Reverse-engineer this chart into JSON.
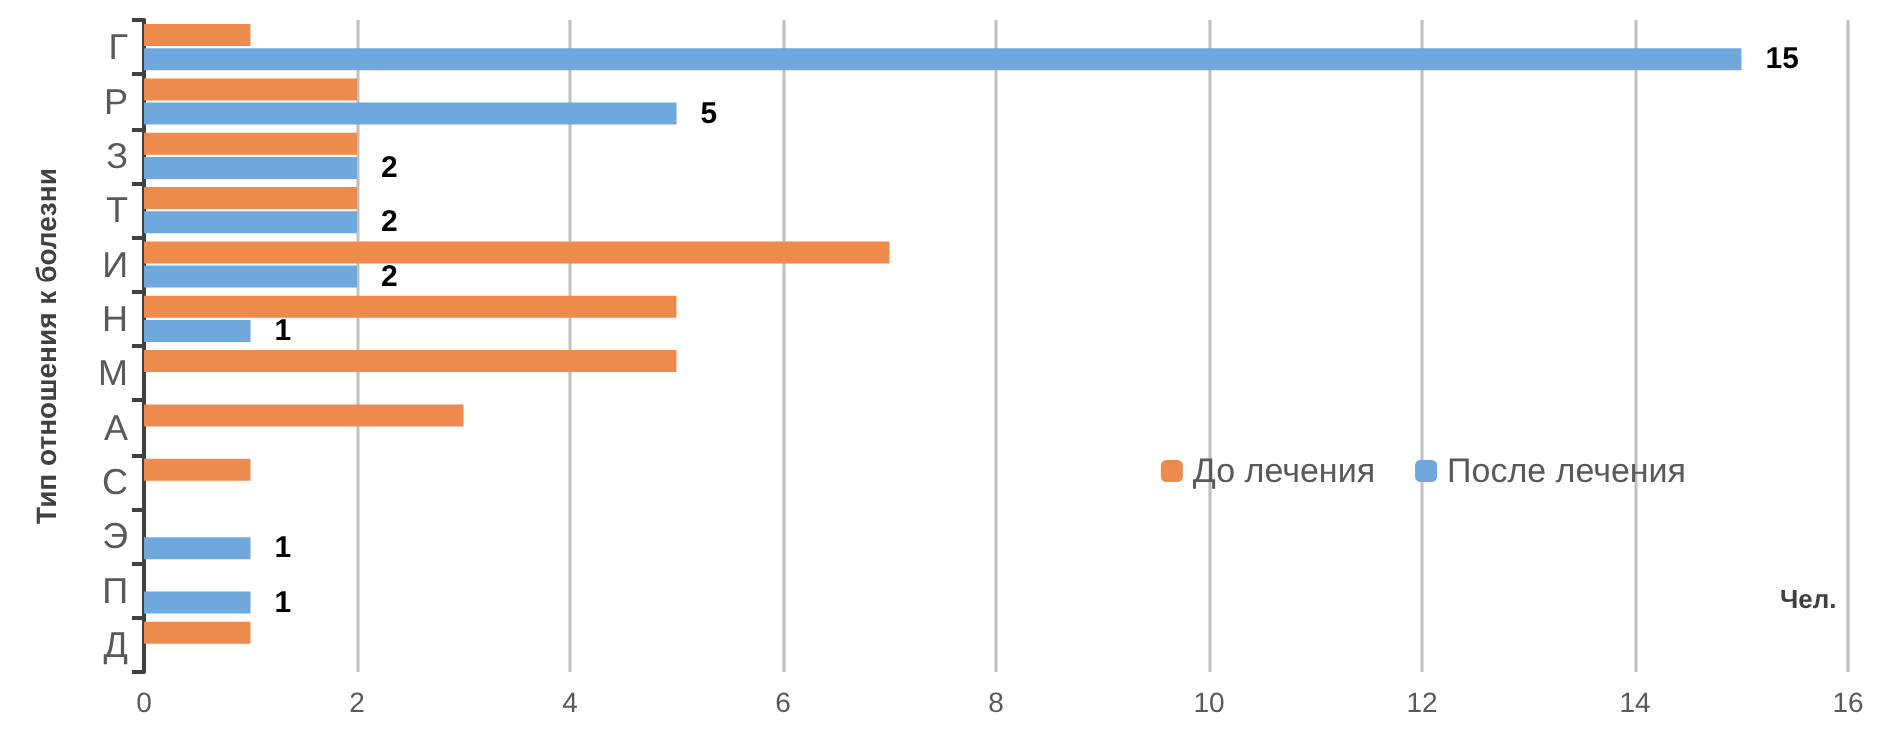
{
  "chart_data": {
    "type": "bar",
    "orientation": "horizontal",
    "xlabel": "Чел.",
    "ylabel": "Тип отношения к болезни",
    "categories": [
      "Г",
      "Р",
      "З",
      "Т",
      "И",
      "Н",
      "М",
      "А",
      "С",
      "Э",
      "П",
      "Д"
    ],
    "series": [
      {
        "name": "До лечения",
        "color": "#ed8b4c",
        "values": [
          1,
          2,
          2,
          2,
          7,
          5,
          5,
          3,
          1,
          null,
          null,
          1
        ]
      },
      {
        "name": "После лечения",
        "color": "#6fa8dc",
        "values": [
          15,
          5,
          2,
          2,
          2,
          1,
          null,
          null,
          null,
          1,
          1,
          null
        ],
        "value_labels": [
          "15",
          "5",
          "2",
          "2",
          "2",
          "1",
          null,
          null,
          null,
          "1",
          "1",
          null
        ]
      }
    ],
    "xlim": [
      0,
      16
    ],
    "xticks": [
      0,
      2,
      4,
      6,
      8,
      10,
      12,
      14,
      16
    ],
    "grid": "x",
    "legend": "right"
  }
}
